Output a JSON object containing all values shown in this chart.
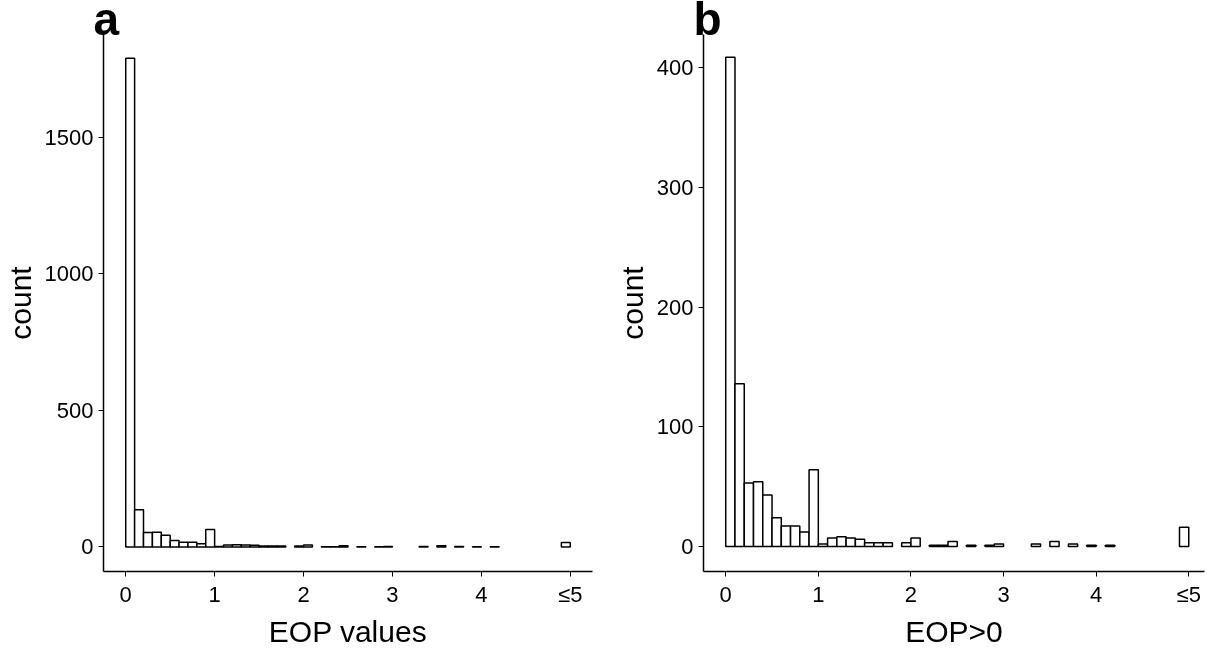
{
  "chart_data": [
    {
      "type": "histogram",
      "title": "a",
      "xlabel": "EOP values",
      "ylabel": "count",
      "bins": [
        0,
        0.1,
        0.2,
        0.3,
        0.4,
        0.5,
        0.6,
        0.7,
        0.8,
        0.9,
        1.0,
        1.1,
        1.2,
        1.3,
        1.4,
        1.5,
        1.6,
        1.7,
        1.8,
        1.9,
        2.0,
        2.1,
        2.2,
        2.3,
        2.4,
        2.5,
        2.6,
        2.7,
        2.8,
        2.9,
        3.0,
        3.1,
        3.2,
        3.3,
        3.4,
        3.5,
        3.6,
        3.7,
        3.8,
        3.9,
        4.0,
        4.1,
        4.2,
        4.3,
        4.4,
        4.5,
        4.6,
        4.7,
        4.8,
        4.9,
        5.0
      ],
      "values": [
        1790,
        136,
        53,
        54,
        43,
        24,
        17,
        17,
        12,
        64,
        2,
        7,
        8,
        7,
        6,
        3,
        3,
        3,
        null,
        3,
        7,
        null,
        1,
        1,
        4,
        null,
        1,
        null,
        1,
        2,
        null,
        null,
        null,
        2,
        null,
        4,
        null,
        2,
        null,
        1,
        null,
        1,
        null,
        null,
        null,
        null,
        null,
        null,
        null,
        16
      ],
      "color": "#ffffff",
      "xlim": [
        -0.25,
        5.25
      ],
      "ylim": [
        -90,
        1877
      ],
      "xticks": [
        0,
        1,
        2,
        3,
        4,
        {
          "value": 5,
          "label": "≤5"
        }
      ],
      "yticks": [
        0,
        500,
        1000,
        1500
      ],
      "grid": false
    },
    {
      "type": "histogram",
      "title": "b",
      "xlabel": "EOP>0",
      "ylabel": "count",
      "bins": [
        0,
        0.1,
        0.2,
        0.3,
        0.4,
        0.5,
        0.6,
        0.7,
        0.8,
        0.9,
        1.0,
        1.1,
        1.2,
        1.3,
        1.4,
        1.5,
        1.6,
        1.7,
        1.8,
        1.9,
        2.0,
        2.1,
        2.2,
        2.3,
        2.4,
        2.5,
        2.6,
        2.7,
        2.8,
        2.9,
        3.0,
        3.1,
        3.2,
        3.3,
        3.4,
        3.5,
        3.6,
        3.7,
        3.8,
        3.9,
        4.0,
        4.1,
        4.2,
        4.3,
        4.4,
        4.5,
        4.6,
        4.7,
        4.8,
        4.9,
        5.0
      ],
      "values": [
        409,
        136,
        53,
        54,
        43,
        24,
        17,
        17,
        12,
        64,
        2,
        7,
        8,
        7,
        6,
        3,
        3,
        3,
        null,
        3,
        7,
        null,
        1,
        1,
        4,
        null,
        1,
        null,
        1,
        2,
        null,
        null,
        null,
        2,
        null,
        4,
        null,
        2,
        null,
        1,
        null,
        1,
        null,
        null,
        null,
        null,
        null,
        null,
        null,
        16
      ],
      "color": "#ffffff",
      "xlim": [
        -0.24,
        5.17
      ],
      "ylim": [
        -21,
        428
      ],
      "xticks": [
        0,
        1,
        2,
        3,
        4,
        {
          "value": 5,
          "label": "≤5"
        }
      ],
      "yticks": [
        0,
        100,
        200,
        300,
        400
      ],
      "grid": false
    }
  ]
}
